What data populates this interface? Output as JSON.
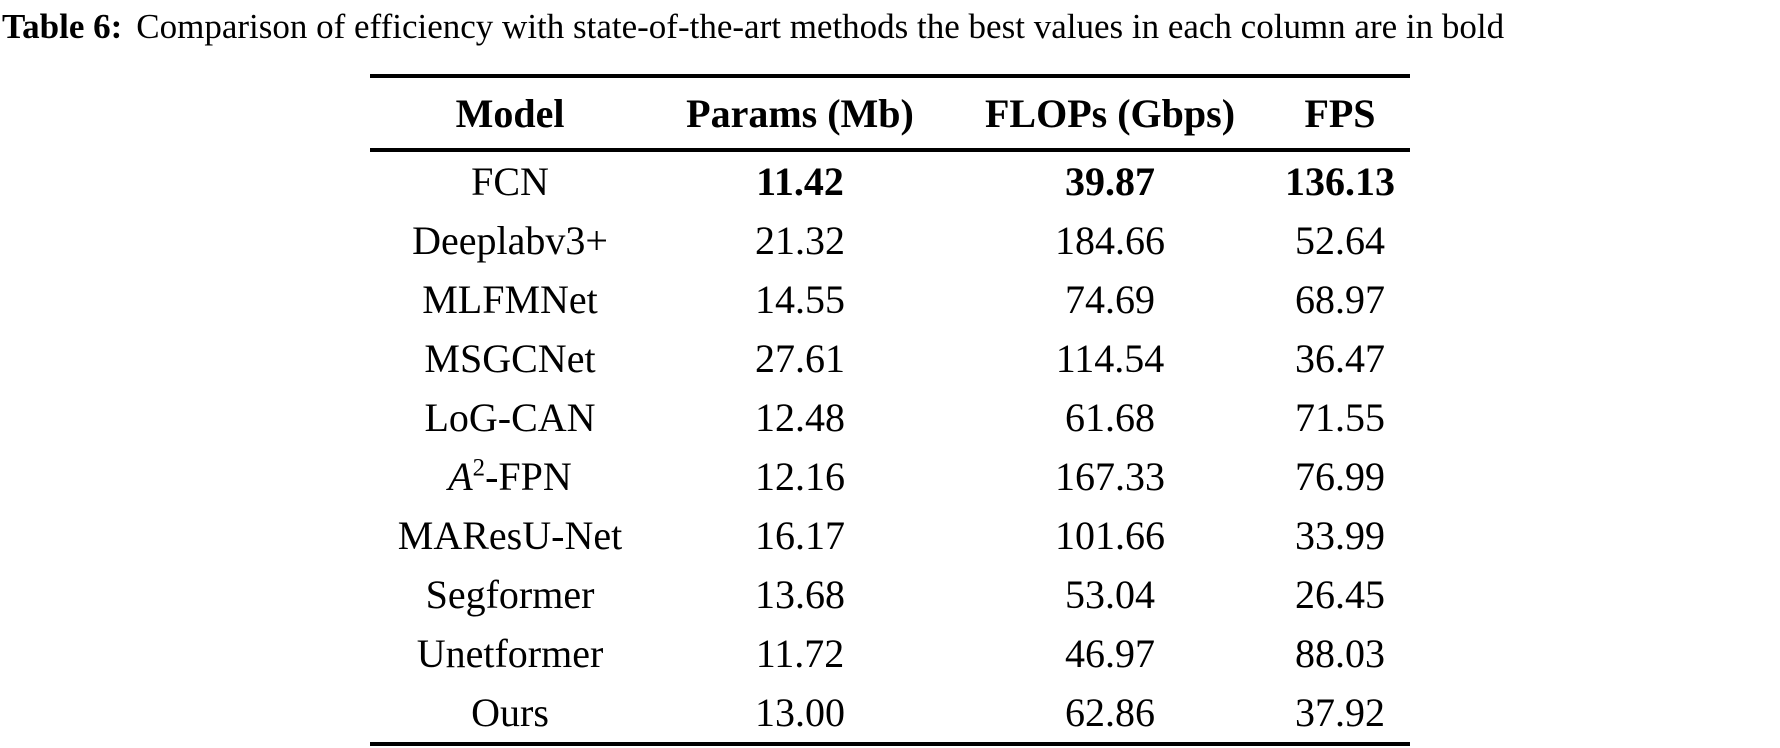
{
  "caption": {
    "label": "Table 6:",
    "text": "Comparison of efficiency with state-of-the-art methods the best values in each column are in bold"
  },
  "table": {
    "headers": [
      "Model",
      "Params (Mb)",
      "FLOPs (Gbps)",
      "FPS"
    ],
    "rows": [
      {
        "model": "FCN",
        "params": "11.42",
        "flops": "39.87",
        "fps": "136.13",
        "bold": true
      },
      {
        "model": "Deeplabv3+",
        "params": "21.32",
        "flops": "184.66",
        "fps": "52.64",
        "bold": false
      },
      {
        "model": "MLFMNet",
        "params": "14.55",
        "flops": "74.69",
        "fps": "68.97",
        "bold": false
      },
      {
        "model": "MSGCNet",
        "params": "27.61",
        "flops": "114.54",
        "fps": "36.47",
        "bold": false
      },
      {
        "model": "LoG-CAN",
        "params": "12.48",
        "flops": "61.68",
        "fps": "71.55",
        "bold": false
      },
      {
        "model": "A²-FPN",
        "model_parts": {
          "italic": "A",
          "sup": "2",
          "rest": "-FPN"
        },
        "params": "12.16",
        "flops": "167.33",
        "fps": "76.99",
        "bold": false
      },
      {
        "model": "MAResU-Net",
        "params": "16.17",
        "flops": "101.66",
        "fps": "33.99",
        "bold": false
      },
      {
        "model": "Segformer",
        "params": "13.68",
        "flops": "53.04",
        "fps": "26.45",
        "bold": false
      },
      {
        "model": "Unetformer",
        "params": "11.72",
        "flops": "46.97",
        "fps": "88.03",
        "bold": false
      },
      {
        "model": "Ours",
        "params": "13.00",
        "flops": "62.86",
        "fps": "37.92",
        "bold": false
      }
    ]
  },
  "colors": {
    "text": "#000000",
    "background": "#ffffff",
    "rule": "#000000"
  }
}
